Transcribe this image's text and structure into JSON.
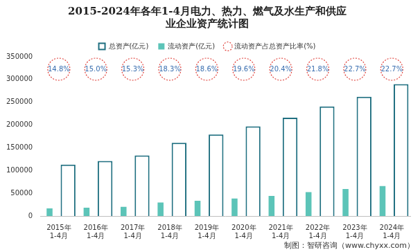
{
  "chart_data": {
    "type": "bar",
    "title": [
      "2015-2024年各年1-4月电力、热力、燃气及水生产和供应",
      "业企业资产统计图"
    ],
    "source": "制图：智研咨询（www.chyxx.com）",
    "categories": [
      "2015年1-4月",
      "2016年1-4月",
      "2017年1-4月",
      "2018年1-4月",
      "2019年1-4月",
      "2020年1-4月",
      "2021年1-4月",
      "2022年1-4月",
      "2023年1-4月",
      "2024年1-4月"
    ],
    "series": [
      {
        "name": "总资产(亿元)",
        "type": "bar",
        "color": "#1f6f80",
        "values": [
          113000,
          121000,
          133000,
          161000,
          179000,
          197000,
          216000,
          241000,
          262000,
          290000
        ]
      },
      {
        "name": "流动资产(亿元)",
        "type": "bar",
        "color": "#5cc4b8",
        "values": [
          16700,
          18200,
          20300,
          29500,
          33300,
          38600,
          44100,
          52500,
          59500,
          65800
        ]
      },
      {
        "name": "流动资产占总资产比率(%)",
        "type": "label",
        "color": "#e0403a",
        "values": [
          14.8,
          15.0,
          15.3,
          18.3,
          18.6,
          19.6,
          20.4,
          21.8,
          22.7,
          22.7
        ],
        "value_labels": [
          "14.8%",
          "15.0%",
          "15.3%",
          "18.3%",
          "18.6%",
          "19.6%",
          "20.4%",
          "21.8%",
          "22.7%",
          "22.7%"
        ]
      }
    ],
    "ylim": [
      0,
      350000
    ],
    "yticks": [
      0,
      50000,
      100000,
      150000,
      200000,
      250000,
      300000,
      350000
    ],
    "grid": false,
    "legend": "top",
    "data_labels": true
  }
}
